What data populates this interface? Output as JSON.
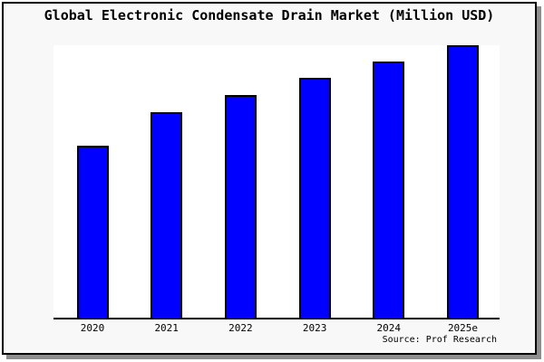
{
  "title": "Global Electronic Condensate Drain Market (Million USD)",
  "source_label": "Source: Prof Research",
  "colors": {
    "bar_fill": "#0000ff",
    "bar_border": "#000000",
    "box_background": "#f8f8f8",
    "plot_background": "#ffffff",
    "axis": "#000000",
    "frame_border": "#000000",
    "shadow": "#8e8e8e",
    "text": "#000000"
  },
  "chart_data": {
    "type": "bar",
    "title": "Global Electronic Condensate Drain Market (Million USD)",
    "categories": [
      "2020",
      "2021",
      "2022",
      "2023",
      "2024",
      "2025e"
    ],
    "values": [
      63,
      75.3,
      81.7,
      88,
      94,
      100
    ],
    "values_estimated_from_bar_heights": true,
    "xlabel": "",
    "ylabel": "",
    "ylim": [
      0,
      100
    ],
    "y_axis_labels_visible": false,
    "grid": false,
    "legend": false,
    "bar_color": "#0000ff",
    "source": "Source: Prof Research"
  }
}
